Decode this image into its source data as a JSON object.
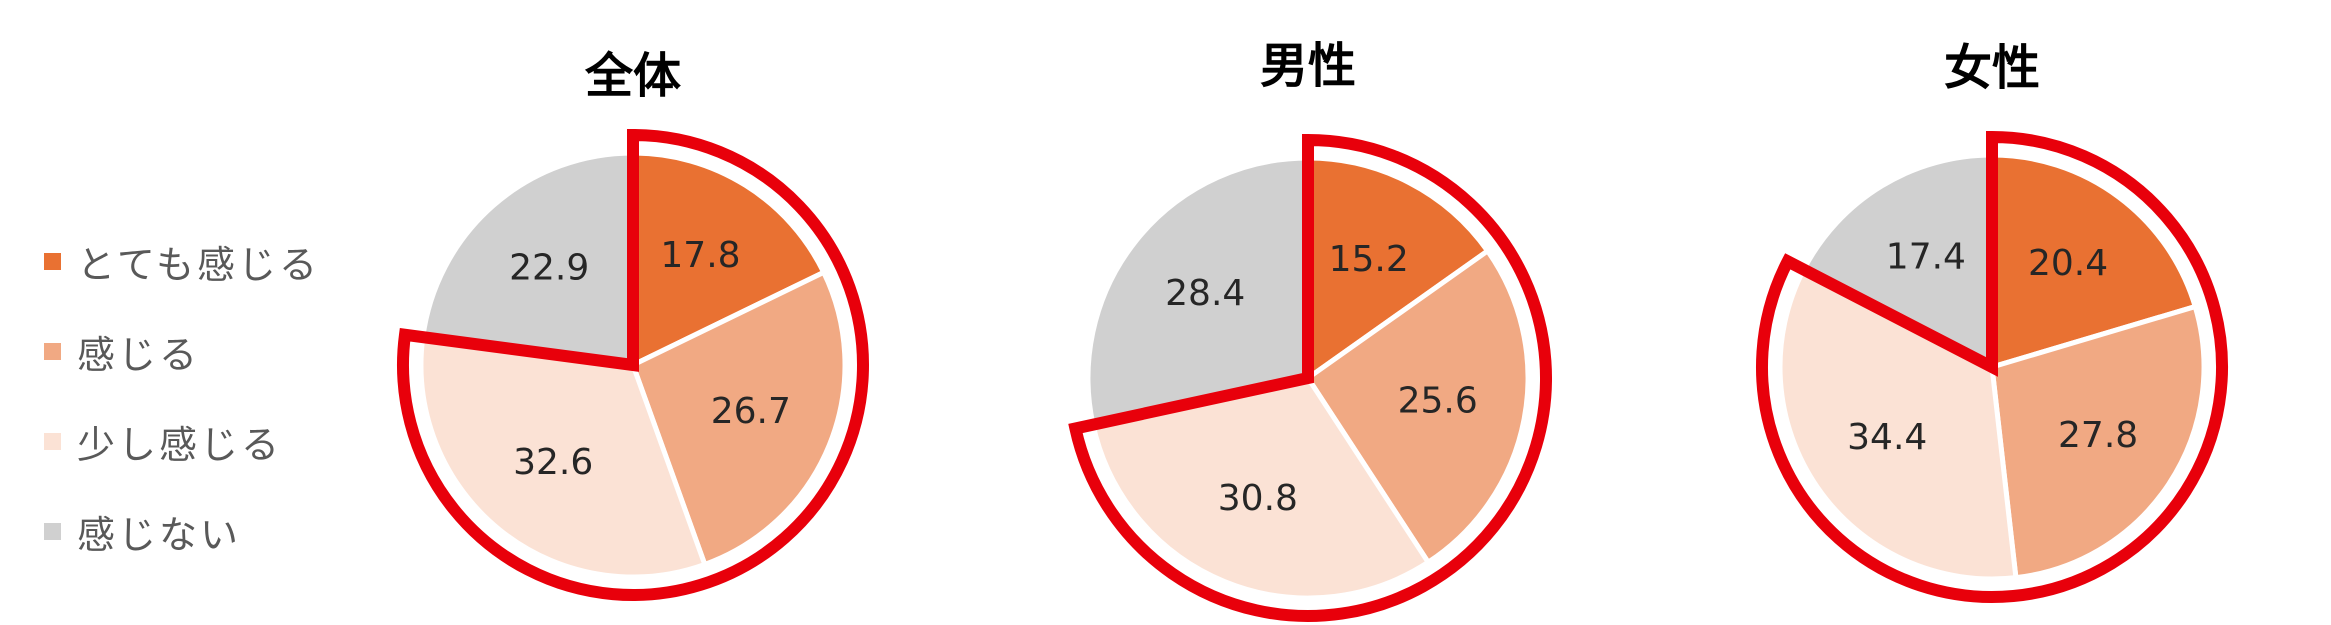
{
  "legend": [
    {
      "label": "とても感じる",
      "color": "#E97132"
    },
    {
      "label": "感じる",
      "color": "#F1A983"
    },
    {
      "label": "少し感じる",
      "color": "#FBE2D5"
    },
    {
      "label": "感じない",
      "color": "#D0D0D0"
    }
  ],
  "highlight_color": "#E8000B",
  "chart_data": [
    {
      "type": "pie",
      "title": "全体",
      "categories": [
        "とても感じる",
        "感じる",
        "少し感じる",
        "感じない"
      ],
      "values": [
        17.8,
        26.7,
        32.6,
        22.9
      ],
      "highlighted_categories": [
        "とても感じる",
        "感じる",
        "少し感じる"
      ]
    },
    {
      "type": "pie",
      "title": "男性",
      "categories": [
        "とても感じる",
        "感じる",
        "少し感じる",
        "感じない"
      ],
      "values": [
        15.2,
        25.6,
        30.8,
        28.4
      ],
      "highlighted_categories": [
        "とても感じる",
        "感じる",
        "少し感じる"
      ]
    },
    {
      "type": "pie",
      "title": "女性",
      "categories": [
        "とても感じる",
        "感じる",
        "少し感じる",
        "感じない"
      ],
      "values": [
        20.4,
        27.8,
        34.4,
        17.4
      ],
      "highlighted_categories": [
        "とても感じる",
        "感じる",
        "少し感じる"
      ]
    }
  ]
}
